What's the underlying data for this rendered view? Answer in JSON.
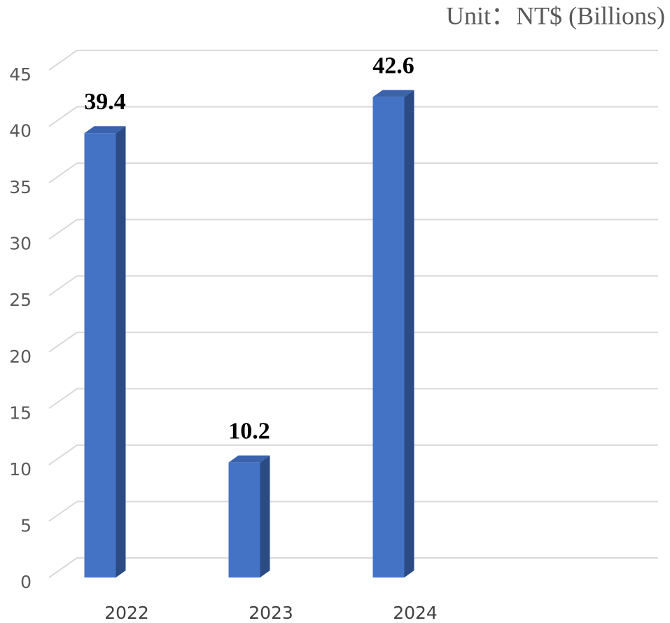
{
  "chart_data": {
    "type": "bar3d",
    "unit_label": "Unit：NT$ (Billions)",
    "categories": [
      "2022",
      "2023",
      "2024"
    ],
    "values": [
      39.4,
      10.2,
      42.6
    ],
    "color": "#4472c4",
    "ylim": [
      0,
      45
    ],
    "yticks": [
      0,
      5,
      10,
      15,
      20,
      25,
      30,
      35,
      40,
      45
    ],
    "grid": true
  }
}
